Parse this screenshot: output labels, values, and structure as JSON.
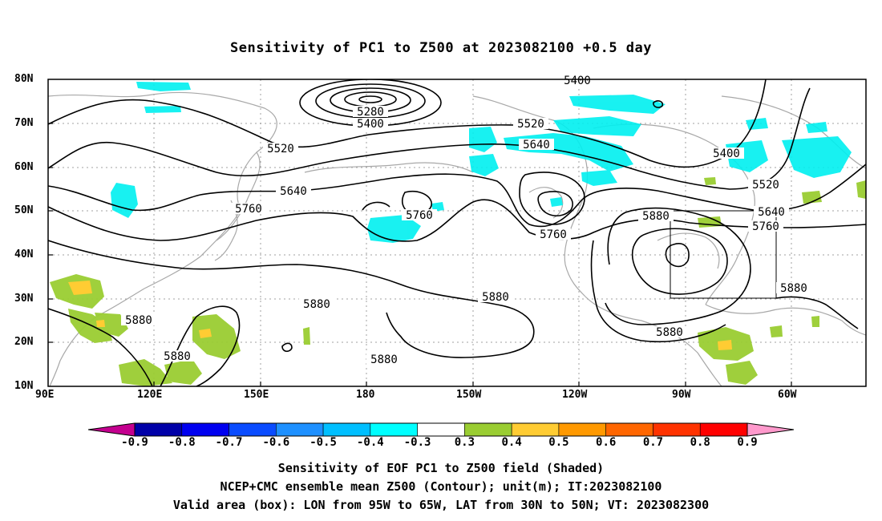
{
  "title": "Sensitivity of PC1 to Z500 at 2023082100 +0.5 day",
  "map": {
    "lat_labels": [
      "80N",
      "70N",
      "60N",
      "50N",
      "40N",
      "30N",
      "20N",
      "10N"
    ],
    "lon_labels": [
      "90E",
      "120E",
      "150E",
      "180",
      "150W",
      "120W",
      "90W",
      "60W"
    ],
    "contour_labels": [
      "5280",
      "5400",
      "5400",
      "5400",
      "5520",
      "5520",
      "5520",
      "5640",
      "5640",
      "5640",
      "5760",
      "5760",
      "5760",
      "5760",
      "5880",
      "5880",
      "5880",
      "5880",
      "5880",
      "5880",
      "5880",
      "5880"
    ],
    "valid_box": {
      "lon_from": "95W",
      "lon_to": "65W",
      "lat_from": "30N",
      "lat_to": "50N"
    },
    "colors": {
      "coast": "#a8a8a8",
      "contour": "#000000",
      "grid": "#a0a0a0",
      "neg": "#00f0f0",
      "pos": "#9acd32",
      "pos_high": "#ffcc33"
    }
  },
  "colorbar": {
    "labels": [
      "-0.9",
      "-0.8",
      "-0.7",
      "-0.6",
      "-0.5",
      "-0.4",
      "-0.3",
      "0.3",
      "0.4",
      "0.5",
      "0.6",
      "0.7",
      "0.8",
      "0.9"
    ],
    "colors": [
      "#0000a8",
      "#0000f0",
      "#0a4cff",
      "#1e90ff",
      "#00bfff",
      "#00ffff",
      "#ffffff",
      "#9acd32",
      "#ffcc33",
      "#ff9900",
      "#ff6600",
      "#ff3300",
      "#ff0000"
    ],
    "end_colors": {
      "left": "#c4008f",
      "right": "#ff99cc"
    }
  },
  "captions": [
    "Sensitivity of EOF PC1 to Z500 field (Shaded)",
    "NCEP+CMC ensemble mean Z500 (Contour); unit(m); IT:2023082100",
    "Valid area (box): LON from 95W to 65W, LAT from 30N to 50N; VT: 2023082300"
  ]
}
